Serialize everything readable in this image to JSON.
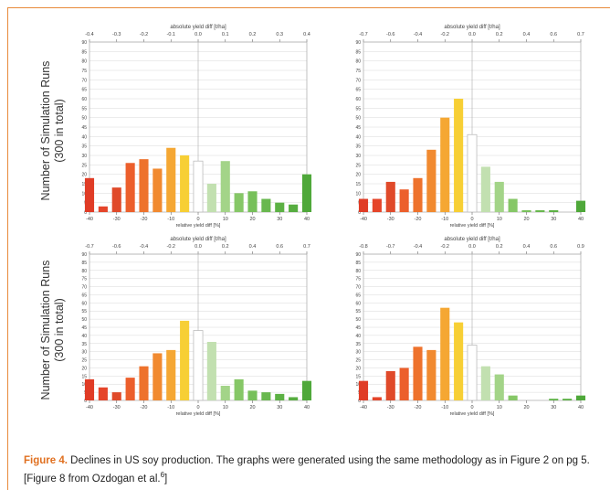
{
  "figure": {
    "ylabel_line1": "Number of Simulation Runs",
    "ylabel_line2": "(300 in total)",
    "caption": {
      "label": "Figure 4.",
      "text1": " Declines in US soy production.  The graphs were generated using the same methodology as in Figure 2 on pg 5.  [Figure 8 from Ozdogan et al.",
      "ref": "6",
      "text2": "]"
    }
  },
  "chart_data": [
    {
      "type": "bar",
      "title": "absolute yield diff [t/ha]",
      "xlabel": "relative yield diff [%]",
      "x_ticks": [
        "-40",
        "-30",
        "-20",
        "-10",
        "0",
        "10",
        "20",
        "30",
        "40"
      ],
      "top_ticks": [
        "-0.4",
        "-0.3",
        "-0.2",
        "-0.1",
        "0.0",
        "0.1",
        "0.2",
        "0.3",
        "0.4"
      ],
      "ylim": [
        0,
        90
      ],
      "y_ticks": [
        "0",
        "5",
        "10",
        "15",
        "20",
        "25",
        "30",
        "35",
        "40",
        "45",
        "50",
        "55",
        "60",
        "65",
        "70",
        "75",
        "80",
        "85",
        "90"
      ],
      "values": [
        18,
        3,
        13,
        26,
        28,
        23,
        34,
        30,
        27,
        15,
        27,
        10,
        11,
        7,
        5,
        4,
        20
      ]
    },
    {
      "type": "bar",
      "title": "absolute yield diff [t/ha]",
      "xlabel": "relative yield diff [%]",
      "x_ticks": [
        "-40",
        "-30",
        "-20",
        "-10",
        "0",
        "10",
        "20",
        "30",
        "40"
      ],
      "top_ticks": [
        "-0.7",
        "-0.6",
        "-0.4",
        "-0.2",
        "0.0",
        "0.2",
        "0.4",
        "0.6",
        "0.7"
      ],
      "ylim": [
        0,
        90
      ],
      "y_ticks": [
        "0",
        "5",
        "10",
        "15",
        "20",
        "25",
        "30",
        "35",
        "40",
        "45",
        "50",
        "55",
        "60",
        "65",
        "70",
        "75",
        "80",
        "85",
        "90"
      ],
      "values": [
        7,
        7,
        16,
        12,
        18,
        33,
        50,
        60,
        41,
        24,
        16,
        7,
        1,
        1,
        1,
        0,
        6
      ]
    },
    {
      "type": "bar",
      "title": "absolute yield diff [t/ha]",
      "xlabel": "relative yield diff [%]",
      "x_ticks": [
        "-40",
        "-30",
        "-20",
        "-10",
        "0",
        "10",
        "20",
        "30",
        "40"
      ],
      "top_ticks": [
        "-0.7",
        "-0.6",
        "-0.4",
        "-0.2",
        "0.0",
        "0.2",
        "0.4",
        "0.6",
        "0.7"
      ],
      "ylim": [
        0,
        90
      ],
      "y_ticks": [
        "0",
        "5",
        "10",
        "15",
        "20",
        "25",
        "30",
        "35",
        "40",
        "45",
        "50",
        "55",
        "60",
        "65",
        "70",
        "75",
        "80",
        "85",
        "90"
      ],
      "values": [
        13,
        8,
        5,
        14,
        21,
        29,
        31,
        49,
        43,
        36,
        9,
        13,
        6,
        5,
        4,
        2,
        12
      ]
    },
    {
      "type": "bar",
      "title": "absolute yield diff [t/ha]",
      "xlabel": "relative yield diff [%]",
      "x_ticks": [
        "-40",
        "-30",
        "-20",
        "-10",
        "0",
        "10",
        "20",
        "30",
        "40"
      ],
      "top_ticks": [
        "-0.8",
        "-0.7",
        "-0.4",
        "-0.2",
        "0.0",
        "0.2",
        "0.4",
        "0.6",
        "0.9"
      ],
      "ylim": [
        0,
        90
      ],
      "y_ticks": [
        "0",
        "5",
        "10",
        "15",
        "20",
        "25",
        "30",
        "35",
        "40",
        "45",
        "50",
        "55",
        "60",
        "65",
        "70",
        "75",
        "80",
        "85",
        "90"
      ],
      "values": [
        12,
        2,
        18,
        20,
        33,
        31,
        57,
        48,
        34,
        21,
        16,
        3,
        0,
        0,
        1,
        1,
        3
      ]
    }
  ],
  "colors": {
    "bars": [
      "#e03c26",
      "#e5452a",
      "#e04a2a",
      "#ec5f2c",
      "#ee722c",
      "#f18a30",
      "#f5a733",
      "#f7cf35",
      "#ffffff",
      "#c2e0b0",
      "#a3d488",
      "#86c767",
      "#77c05a",
      "#69b84f",
      "#5cb144",
      "#57ad40",
      "#4fa83a"
    ],
    "zero_bar_edge": "#bdbdbd",
    "grid": "#d8d8d8",
    "caption_label": "#e07020",
    "frame": "#e88a3a"
  }
}
